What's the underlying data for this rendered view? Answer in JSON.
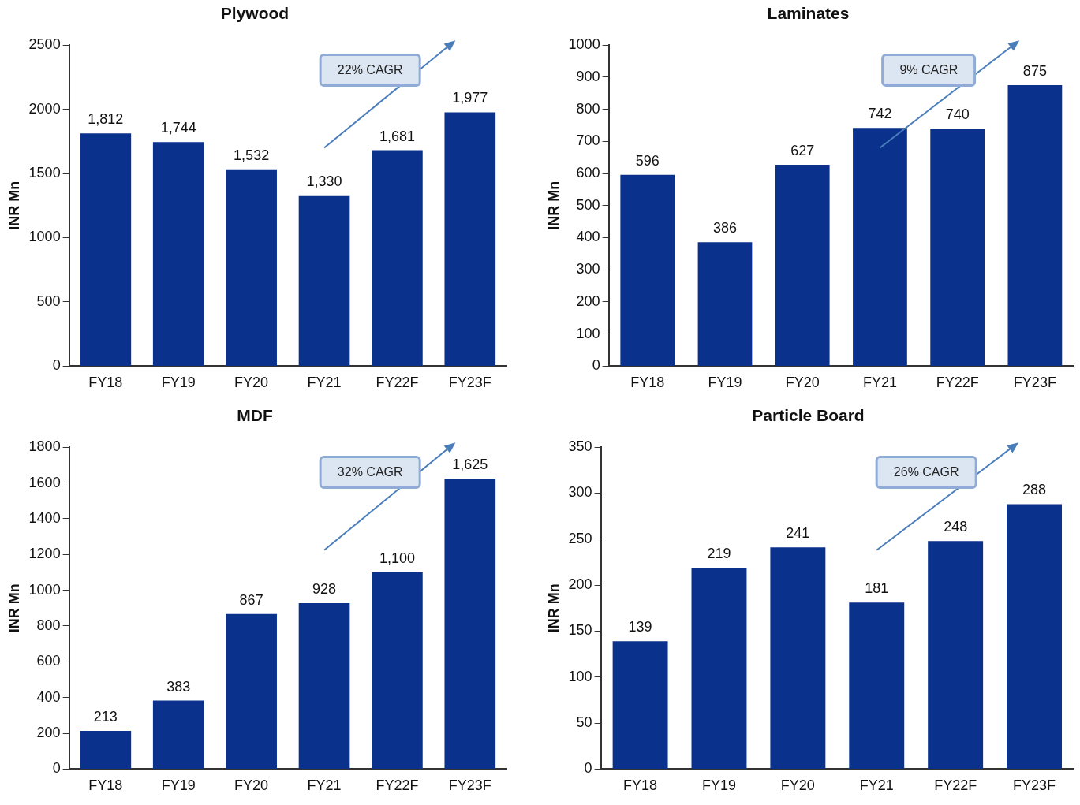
{
  "chart_data": [
    {
      "type": "bar",
      "title": "Plywood",
      "ylabel": "INR Mn",
      "categories": [
        "FY18",
        "FY19",
        "FY20",
        "FY21",
        "FY22F",
        "FY23F"
      ],
      "values": [
        1812,
        1744,
        1532,
        1330,
        1681,
        1977
      ],
      "value_labels": [
        "1,812",
        "1,744",
        "1,532",
        "1,330",
        "1,681",
        "1,977"
      ],
      "color": "#0a318c",
      "ylim": [
        0,
        2500
      ],
      "yticks": [
        0,
        500,
        1000,
        1500,
        2000,
        2500
      ],
      "grid": false,
      "legend": false,
      "annotations": [
        "22% CAGR"
      ]
    },
    {
      "type": "bar",
      "title": "Laminates",
      "ylabel": "INR Mn",
      "categories": [
        "FY18",
        "FY19",
        "FY20",
        "FY21",
        "FY22F",
        "FY23F"
      ],
      "values": [
        596,
        386,
        627,
        742,
        740,
        875
      ],
      "color": "#0a318c",
      "ylim": [
        0,
        1000
      ],
      "yticks": [
        0,
        100,
        200,
        300,
        400,
        500,
        600,
        700,
        800,
        900,
        1000
      ],
      "data_labels": true,
      "grid": false,
      "legend": false,
      "annotations": [
        "9% CAGR"
      ]
    },
    {
      "type": "bar",
      "title": "MDF",
      "ylabel": "INR Mn",
      "categories": [
        "FY18",
        "FY19",
        "FY20",
        "FY21",
        "FY22F",
        "FY23F"
      ],
      "values": [
        213,
        383,
        867,
        928,
        1100,
        1625
      ],
      "value_labels": [
        "213",
        "383",
        "867",
        "928",
        "1,100",
        "1,625"
      ],
      "color": "#0a318c",
      "ylim": [
        0,
        1800
      ],
      "yticks": [
        0,
        200,
        400,
        600,
        800,
        1000,
        1200,
        1400,
        1600,
        1800
      ],
      "grid": false,
      "legend": false,
      "annotations": [
        "32% CAGR"
      ]
    },
    {
      "type": "bar",
      "title": "Particle Board",
      "ylabel": "INR Mn",
      "categories": [
        "FY18",
        "FY19",
        "FY20",
        "FY21",
        "FY22F",
        "FY23F"
      ],
      "values": [
        139,
        219,
        241,
        181,
        248,
        288
      ],
      "color": "#0a318c",
      "ylim": [
        0,
        350
      ],
      "yticks": [
        0,
        50,
        100,
        150,
        200,
        250,
        300,
        350
      ],
      "data_labels": true,
      "grid": false,
      "legend": false,
      "annotations": [
        "26% CAGR"
      ]
    }
  ]
}
